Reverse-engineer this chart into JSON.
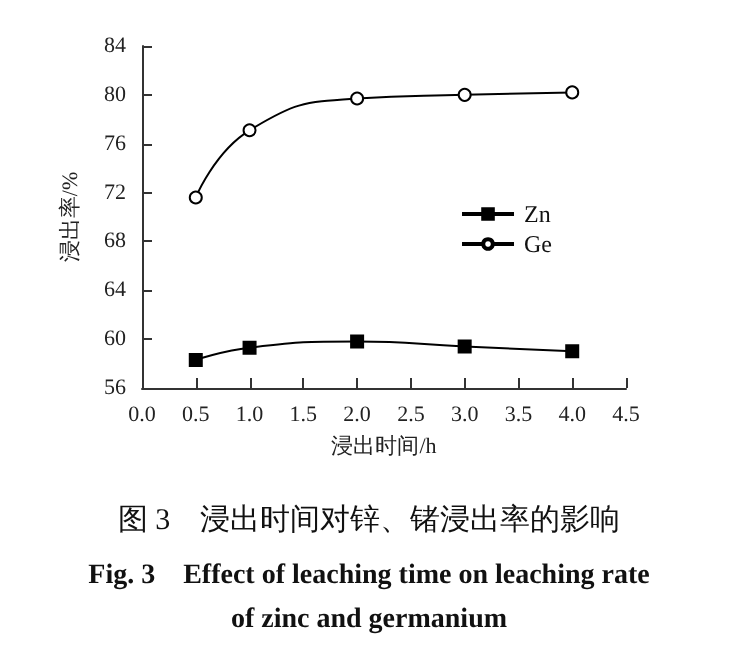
{
  "chart_data": {
    "type": "line",
    "title": "图 3　浸出时间对锌、锗浸出率的影响",
    "subtitle": "Fig. 3　Effect of leaching time on leaching rate\nof zinc and germanium",
    "xlabel": "浸出时间/h",
    "ylabel": "浸出率/%",
    "x": [
      0.5,
      1,
      2,
      3,
      4
    ],
    "series": [
      {
        "name": "Zn",
        "color": "#000000",
        "marker": "square",
        "values": [
          58.3,
          59.3,
          59.8,
          59.4,
          59.0
        ]
      },
      {
        "name": "Ge",
        "color": "#000000",
        "marker": "circle",
        "values": [
          71.6,
          77.1,
          79.7,
          80.0,
          80.2
        ]
      }
    ],
    "xlim": [
      0,
      4.5
    ],
    "xticks": [
      {
        "value": 0,
        "label": "0.0"
      },
      0.5,
      {
        "value": 1,
        "label": "1.0"
      },
      1.5,
      {
        "value": 2,
        "label": "2.0"
      },
      2.5,
      {
        "value": 3,
        "label": "3.0"
      },
      3.5,
      {
        "value": 4,
        "label": "4.0"
      },
      4.5
    ],
    "ylim": [
      56,
      84
    ],
    "yticks": [
      56,
      60,
      64,
      68,
      72,
      76,
      80,
      84
    ],
    "grid": false,
    "legend": "center right",
    "line_style": "solid"
  }
}
